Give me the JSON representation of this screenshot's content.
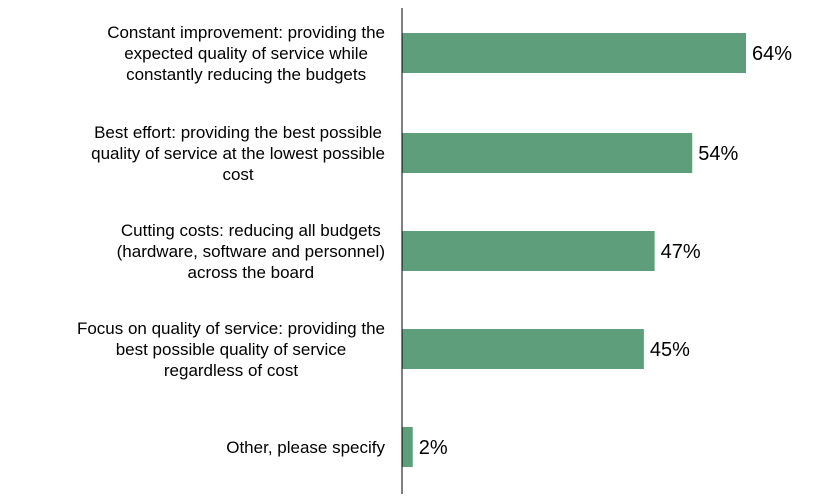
{
  "chart_data": {
    "type": "bar",
    "orientation": "horizontal",
    "categories": [
      [
        "Constant improvement: providing the",
        "expected quality of service while",
        "constantly reducing the budgets"
      ],
      [
        "Best effort: providing the best possible",
        "quality of service at the lowest possible",
        "cost"
      ],
      [
        "Cutting costs: reducing all budgets",
        "(hardware, software and personnel)",
        "across the board"
      ],
      [
        "Focus on quality of service: providing the",
        "best possible quality of service",
        "regardless of cost"
      ],
      [
        "Other, please specify"
      ]
    ],
    "values": [
      64,
      54,
      47,
      45,
      2
    ],
    "value_labels": [
      "64%",
      "54%",
      "47%",
      "45%",
      "2%"
    ],
    "unit": "%",
    "xlim": [
      0,
      100
    ],
    "grid": false,
    "legend": "none",
    "colors": {
      "bar": "#5f9e7a",
      "axis": "#000000",
      "text": "#000000"
    }
  }
}
